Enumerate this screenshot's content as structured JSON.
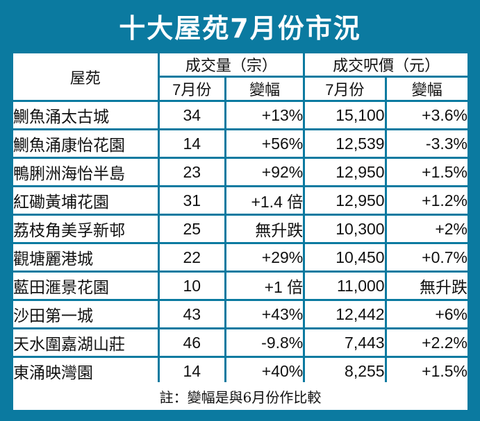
{
  "title": "十大屋苑7月份市況",
  "headers": {
    "estate": "屋苑",
    "volume_group": "成交量（宗）",
    "price_group": "成交呎價（元）",
    "month": "7月份",
    "change": "變幅"
  },
  "rows": [
    {
      "estate": "鰂魚涌太古城",
      "volume": "34",
      "volume_change": "+13%",
      "price": "15,100",
      "price_change": "+3.6%"
    },
    {
      "estate": "鰂魚涌康怡花園",
      "volume": "14",
      "volume_change": "+56%",
      "price": "12,539",
      "price_change": "-3.3%"
    },
    {
      "estate": "鴨脷洲海怡半島",
      "volume": "23",
      "volume_change": "+92%",
      "price": "12,950",
      "price_change": "+1.5%"
    },
    {
      "estate": "紅磡黃埔花園",
      "volume": "31",
      "volume_change": "+1.4 倍",
      "price": "12,950",
      "price_change": "+1.2%"
    },
    {
      "estate": "荔枝角美孚新邨",
      "volume": "25",
      "volume_change": "無升跌",
      "price": "10,300",
      "price_change": "+2%"
    },
    {
      "estate": "觀塘麗港城",
      "volume": "22",
      "volume_change": "+29%",
      "price": "10,450",
      "price_change": "+0.7%"
    },
    {
      "estate": "藍田滙景花園",
      "volume": "10",
      "volume_change": "+1 倍",
      "price": "11,000",
      "price_change": "無升跌"
    },
    {
      "estate": "沙田第一城",
      "volume": "43",
      "volume_change": "+43%",
      "price": "12,442",
      "price_change": "+6%"
    },
    {
      "estate": "天水圍嘉湖山莊",
      "volume": "46",
      "volume_change": "-9.8%",
      "price": "7,443",
      "price_change": "+2.2%"
    },
    {
      "estate": "東涌映灣園",
      "volume": "14",
      "volume_change": "+40%",
      "price": "8,255",
      "price_change": "+1.5%"
    }
  ],
  "note": "註：變幅是與6月份作比較",
  "colors": {
    "background": "#0b7aa0",
    "cell": "#ffffff",
    "text": "#111111"
  }
}
